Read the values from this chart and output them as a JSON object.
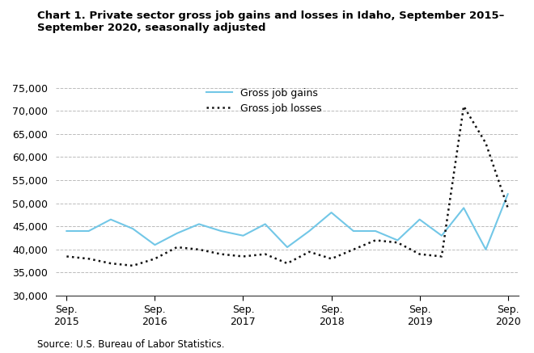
{
  "title_line1": "Chart 1. Private sector gross job gains and losses in Idaho, September 2015–",
  "title_line2": "September 2020, seasonally adjusted",
  "source": "Source: U.S. Bureau of Labor Statistics.",
  "legend_gains": "Gross job gains",
  "legend_losses": "Gross job losses",
  "gains_color": "#72c7e7",
  "losses_color": "#111111",
  "ylim_low": 30000,
  "ylim_high": 76000,
  "yticks": [
    30000,
    35000,
    40000,
    45000,
    50000,
    55000,
    60000,
    65000,
    70000,
    75000
  ],
  "xlim_low": -0.5,
  "xlim_high": 20.5,
  "sep_positions": [
    0,
    4,
    8,
    12,
    16,
    20
  ],
  "sep_labels": [
    "Sep.\n2015",
    "Sep.\n2016",
    "Sep.\n2017",
    "Sep.\n2018",
    "Sep.\n2019",
    "Sep.\n2020"
  ],
  "gains_x": [
    0,
    1,
    2,
    3,
    4,
    5,
    6,
    7,
    8,
    9,
    10,
    11,
    12,
    13,
    14,
    15,
    16,
    17,
    18,
    19,
    20
  ],
  "gains_v": [
    44000,
    44000,
    46500,
    44500,
    41000,
    43500,
    45500,
    44000,
    43000,
    45500,
    40500,
    44000,
    48000,
    44000,
    44000,
    42000,
    46500,
    43000,
    49000,
    40000,
    52000
  ],
  "losses_x": [
    0,
    1,
    2,
    3,
    4,
    5,
    6,
    7,
    8,
    9,
    10,
    11,
    12,
    13,
    14,
    15,
    16,
    17,
    18,
    19,
    20
  ],
  "losses_v": [
    38500,
    38000,
    37000,
    36500,
    38000,
    40500,
    40000,
    39000,
    38500,
    39000,
    37000,
    39500,
    38000,
    40000,
    42000,
    41500,
    39000,
    38500,
    71000,
    63000,
    49000
  ]
}
